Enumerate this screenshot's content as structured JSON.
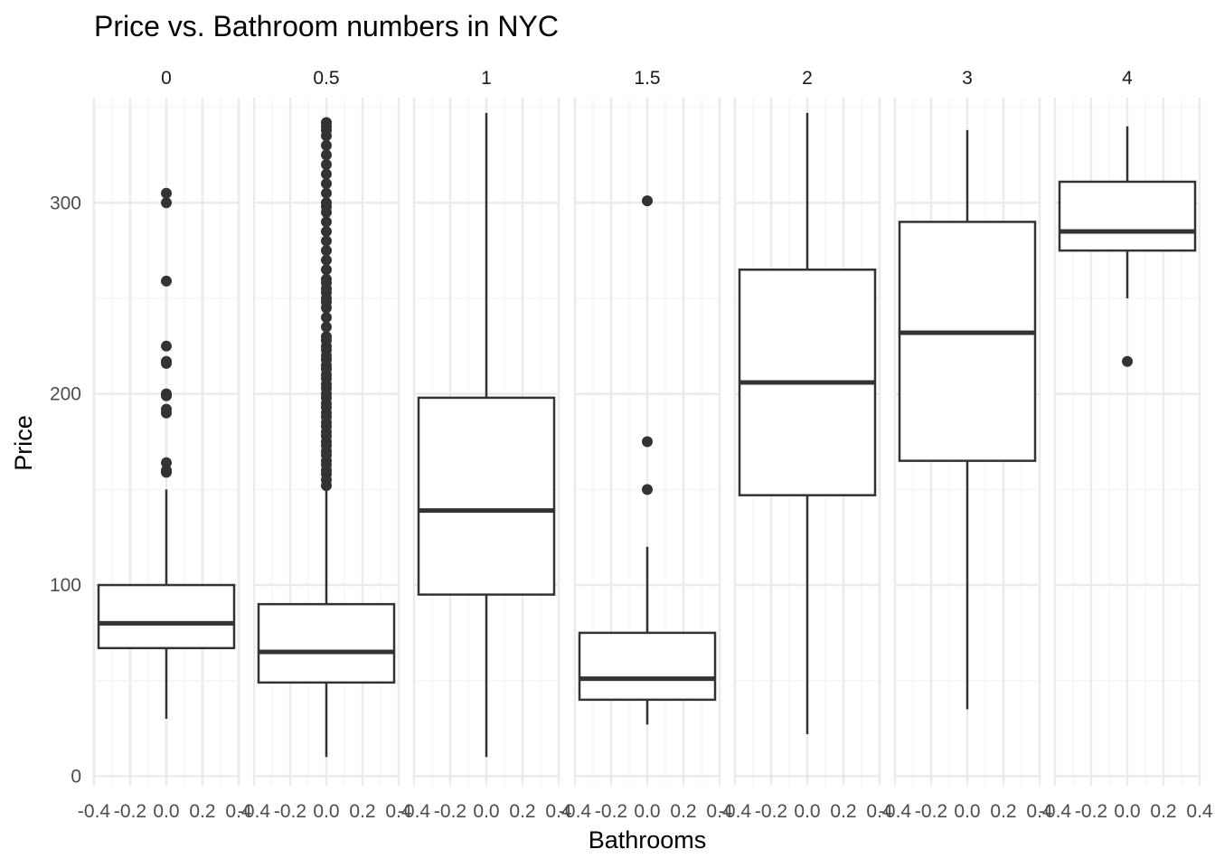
{
  "chart_data": {
    "type": "boxplot",
    "title": "Price vs. Bathroom numbers in NYC",
    "xlabel": "Bathrooms",
    "ylabel": "Price",
    "facet_variable": "Bathrooms",
    "y_ticks": [
      0,
      100,
      200,
      300
    ],
    "ylim": [
      -5,
      355
    ],
    "x_ticks": [
      "-0.4",
      "-0.2",
      "0.0",
      "0.2",
      "0.4"
    ],
    "xlim": [
      -0.4,
      0.4
    ],
    "grid": true,
    "theme": "minimal",
    "colors": {
      "box": "#333333",
      "grid_major": "#ebebeb",
      "grid_minor": "#f5f5f5"
    },
    "panels": [
      {
        "label": "0",
        "whisker_low": 30,
        "q1": 67,
        "median": 80,
        "q3": 100,
        "whisker_high": 150,
        "outliers": [
          305,
          300,
          259,
          225,
          217,
          216,
          200,
          199,
          192,
          190,
          164,
          160,
          159
        ]
      },
      {
        "label": "0.5",
        "whisker_low": 10,
        "q1": 49,
        "median": 65,
        "q3": 90,
        "whisker_high": 150,
        "outliers": [
          152,
          155,
          158,
          160,
          163,
          165,
          168,
          170,
          173,
          175,
          178,
          180,
          183,
          185,
          188,
          190,
          193,
          195,
          198,
          200,
          203,
          205,
          208,
          210,
          213,
          215,
          218,
          220,
          223,
          225,
          228,
          230,
          235,
          240,
          245,
          248,
          250,
          253,
          255,
          258,
          260,
          265,
          270,
          275,
          280,
          285,
          290,
          295,
          298,
          300,
          305,
          310,
          315,
          320,
          325,
          330,
          335,
          338,
          340,
          342
        ]
      },
      {
        "label": "1",
        "whisker_low": 10,
        "q1": 95,
        "median": 139,
        "q3": 198,
        "whisker_high": 347,
        "outliers": []
      },
      {
        "label": "1.5",
        "whisker_low": 27,
        "q1": 40,
        "median": 51,
        "q3": 75,
        "whisker_high": 120,
        "outliers": [
          301,
          175,
          150
        ]
      },
      {
        "label": "2",
        "whisker_low": 22,
        "q1": 147,
        "median": 206,
        "q3": 265,
        "whisker_high": 347,
        "outliers": []
      },
      {
        "label": "3",
        "whisker_low": 35,
        "q1": 165,
        "median": 232,
        "q3": 290,
        "whisker_high": 338,
        "outliers": []
      },
      {
        "label": "4",
        "whisker_low": 250,
        "q1": 275,
        "median": 285,
        "q3": 311,
        "whisker_high": 340,
        "outliers": [
          217
        ]
      }
    ]
  }
}
